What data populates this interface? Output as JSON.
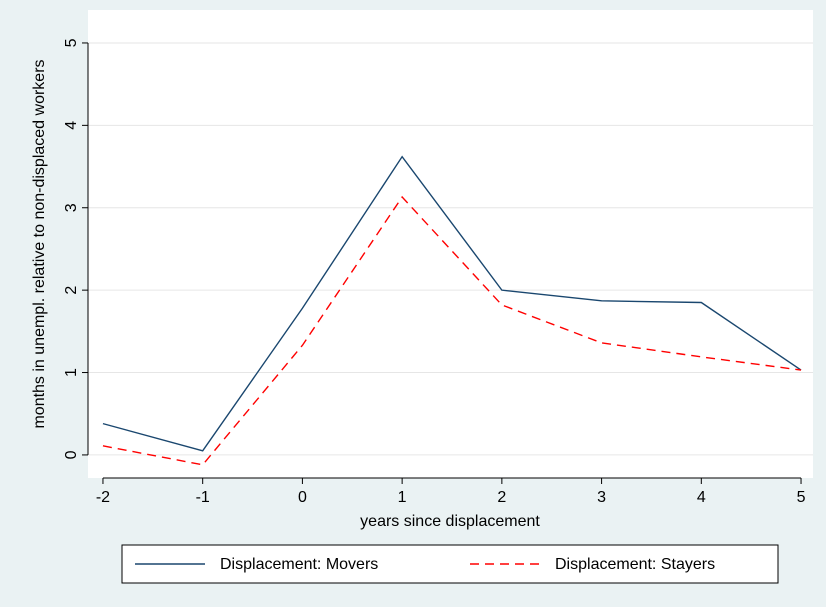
{
  "chart_data": {
    "type": "line",
    "xlabel": "years since displacement",
    "ylabel": "months in unempl. relative to non-displaced workers",
    "x": [
      -2,
      -1,
      0,
      1,
      2,
      3,
      4,
      5
    ],
    "series": [
      {
        "name": "Displacement: Movers",
        "color": "#1a476f",
        "dash": "solid",
        "values": [
          0.38,
          0.05,
          1.78,
          3.62,
          2.0,
          1.87,
          1.85,
          1.03
        ]
      },
      {
        "name": "Displacement: Stayers",
        "color": "#ff0000",
        "dash": "dashed",
        "values": [
          0.11,
          -0.12,
          1.33,
          3.13,
          1.82,
          1.36,
          1.19,
          1.03
        ]
      }
    ],
    "xlim": [
      -2.15,
      5.12
    ],
    "xticks": [
      -2,
      -1,
      0,
      1,
      2,
      3,
      4,
      5
    ],
    "ylim": [
      -0.28,
      5.4
    ],
    "yticks": [
      0,
      1,
      2,
      3,
      4,
      5
    ],
    "grid": true,
    "legend": "bottom"
  }
}
